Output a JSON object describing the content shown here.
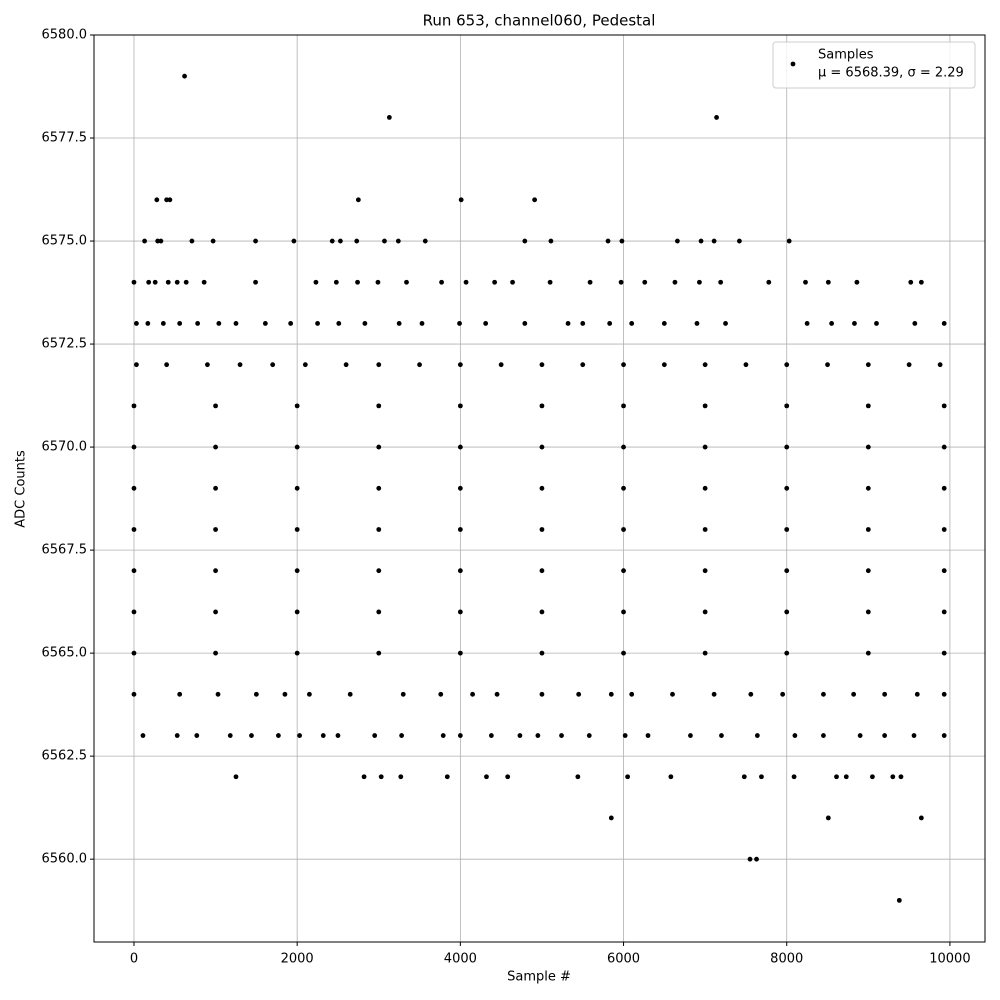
{
  "chart_data": {
    "type": "scatter",
    "title": "Run 653, channel060, Pedestal",
    "x_label": "Sample #",
    "y_label": "ADC Counts",
    "xlim": [
      -490,
      10430
    ],
    "ylim": [
      6557.99,
      6580
    ],
    "xticks": [
      0,
      2000,
      4000,
      6000,
      8000,
      10000
    ],
    "yticks": [
      {
        "value": 6560,
        "label": "6560.0"
      },
      {
        "value": 6562.5,
        "label": "6562.5"
      },
      {
        "value": 6565,
        "label": "6565.0"
      },
      {
        "value": 6567.5,
        "label": "6567.5"
      },
      {
        "value": 6570,
        "label": "6570.0"
      },
      {
        "value": 6572.5,
        "label": "6572.5"
      },
      {
        "value": 6575,
        "label": "6575.0"
      },
      {
        "value": 6577.5,
        "label": "6577.5"
      },
      {
        "value": 6580,
        "label": "6580.0"
      }
    ],
    "grid": true,
    "legend_position": "upper right",
    "legend_note": "μ = 6568.39, σ = 2.29",
    "x": [
      620,
      3130,
      7140,
      280,
      400,
      440,
      2750,
      4010,
      4910,
      130,
      290,
      330,
      710,
      970,
      1490,
      1960,
      2430,
      2530,
      2730,
      3070,
      3240,
      3570,
      4790,
      5110,
      5810,
      5980,
      6660,
      6950,
      7110,
      7420,
      8030,
      0,
      180,
      260,
      420,
      530,
      640,
      860,
      1490,
      2230,
      2480,
      2740,
      2990,
      3340,
      3770,
      4070,
      4420,
      4640,
      5100,
      5590,
      5970,
      6260,
      6630,
      6930,
      7190,
      7780,
      8230,
      8510,
      8860,
      9520,
      9650,
      30,
      170,
      360,
      560,
      780,
      1040,
      1250,
      1610,
      1920,
      2250,
      2510,
      2830,
      3250,
      3530,
      3990,
      4310,
      4790,
      5320,
      5500,
      5830,
      6100,
      6500,
      6900,
      7250,
      8250,
      8550,
      8830,
      9100,
      9570,
      9930,
      30,
      400,
      900,
      1300,
      1700,
      2100,
      2600,
      3000,
      3500,
      4000,
      4500,
      5000,
      5500,
      6000,
      6500,
      7000,
      7500,
      8000,
      8500,
      9000,
      9500,
      9880,
      0,
      1000,
      2000,
      3000,
      4000,
      5000,
      6000,
      7000,
      8000,
      9000,
      9930,
      0,
      1000,
      2000,
      3000,
      4000,
      5000,
      6000,
      7000,
      8000,
      9000,
      9930,
      0,
      1000,
      2000,
      3000,
      4000,
      5000,
      6000,
      7000,
      8000,
      9000,
      9930,
      0,
      1000,
      2000,
      3000,
      4000,
      5000,
      6000,
      7000,
      8000,
      9000,
      9930,
      0,
      1000,
      2000,
      3000,
      4000,
      5000,
      6000,
      7000,
      8000,
      9000,
      9930,
      0,
      1000,
      2000,
      3000,
      4000,
      5000,
      6000,
      7000,
      8000,
      9000,
      9930,
      0,
      1000,
      2000,
      3000,
      4000,
      5000,
      6000,
      7000,
      8000,
      9000,
      9930,
      0,
      560,
      1030,
      1500,
      1850,
      2150,
      2650,
      3300,
      3760,
      4150,
      4450,
      5000,
      5450,
      5850,
      6100,
      6600,
      7110,
      7560,
      7950,
      8450,
      8820,
      9200,
      9600,
      9930,
      110,
      530,
      770,
      1180,
      1440,
      1770,
      2030,
      2320,
      2500,
      2950,
      3280,
      3790,
      4000,
      4380,
      4730,
      4950,
      5240,
      5580,
      6020,
      6300,
      6820,
      7200,
      7640,
      8100,
      8450,
      8900,
      9200,
      9560,
      9930,
      1250,
      2820,
      3030,
      3270,
      3840,
      4320,
      4580,
      5440,
      6050,
      6580,
      7480,
      7690,
      8090,
      8610,
      8730,
      9050,
      9300,
      9400,
      5850,
      8510,
      9650,
      7550,
      7630,
      9380
    ],
    "series": [
      {
        "name": "Samples",
        "color": "#000000",
        "values": [
          6579,
          6578,
          6578,
          6576,
          6576,
          6576,
          6576,
          6576,
          6576,
          6575,
          6575,
          6575,
          6575,
          6575,
          6575,
          6575,
          6575,
          6575,
          6575,
          6575,
          6575,
          6575,
          6575,
          6575,
          6575,
          6575,
          6575,
          6575,
          6575,
          6575,
          6575,
          6574,
          6574,
          6574,
          6574,
          6574,
          6574,
          6574,
          6574,
          6574,
          6574,
          6574,
          6574,
          6574,
          6574,
          6574,
          6574,
          6574,
          6574,
          6574,
          6574,
          6574,
          6574,
          6574,
          6574,
          6574,
          6574,
          6574,
          6574,
          6574,
          6574,
          6573,
          6573,
          6573,
          6573,
          6573,
          6573,
          6573,
          6573,
          6573,
          6573,
          6573,
          6573,
          6573,
          6573,
          6573,
          6573,
          6573,
          6573,
          6573,
          6573,
          6573,
          6573,
          6573,
          6573,
          6573,
          6573,
          6573,
          6573,
          6573,
          6573,
          6572,
          6572,
          6572,
          6572,
          6572,
          6572,
          6572,
          6572,
          6572,
          6572,
          6572,
          6572,
          6572,
          6572,
          6572,
          6572,
          6572,
          6572,
          6572,
          6572,
          6572,
          6572,
          6571,
          6571,
          6571,
          6571,
          6571,
          6571,
          6571,
          6571,
          6571,
          6571,
          6571,
          6570,
          6570,
          6570,
          6570,
          6570,
          6570,
          6570,
          6570,
          6570,
          6570,
          6570,
          6569,
          6569,
          6569,
          6569,
          6569,
          6569,
          6569,
          6569,
          6569,
          6569,
          6569,
          6568,
          6568,
          6568,
          6568,
          6568,
          6568,
          6568,
          6568,
          6568,
          6568,
          6568,
          6567,
          6567,
          6567,
          6567,
          6567,
          6567,
          6567,
          6567,
          6567,
          6567,
          6567,
          6566,
          6566,
          6566,
          6566,
          6566,
          6566,
          6566,
          6566,
          6566,
          6566,
          6566,
          6565,
          6565,
          6565,
          6565,
          6565,
          6565,
          6565,
          6565,
          6565,
          6565,
          6565,
          6564,
          6564,
          6564,
          6564,
          6564,
          6564,
          6564,
          6564,
          6564,
          6564,
          6564,
          6564,
          6564,
          6564,
          6564,
          6564,
          6564,
          6564,
          6564,
          6564,
          6564,
          6564,
          6564,
          6564,
          6563,
          6563,
          6563,
          6563,
          6563,
          6563,
          6563,
          6563,
          6563,
          6563,
          6563,
          6563,
          6563,
          6563,
          6563,
          6563,
          6563,
          6563,
          6563,
          6563,
          6563,
          6563,
          6563,
          6563,
          6563,
          6563,
          6563,
          6563,
          6563,
          6562,
          6562,
          6562,
          6562,
          6562,
          6562,
          6562,
          6562,
          6562,
          6562,
          6562,
          6562,
          6562,
          6562,
          6562,
          6562,
          6562,
          6562,
          6561,
          6561,
          6561,
          6560,
          6560,
          6559
        ]
      }
    ]
  }
}
